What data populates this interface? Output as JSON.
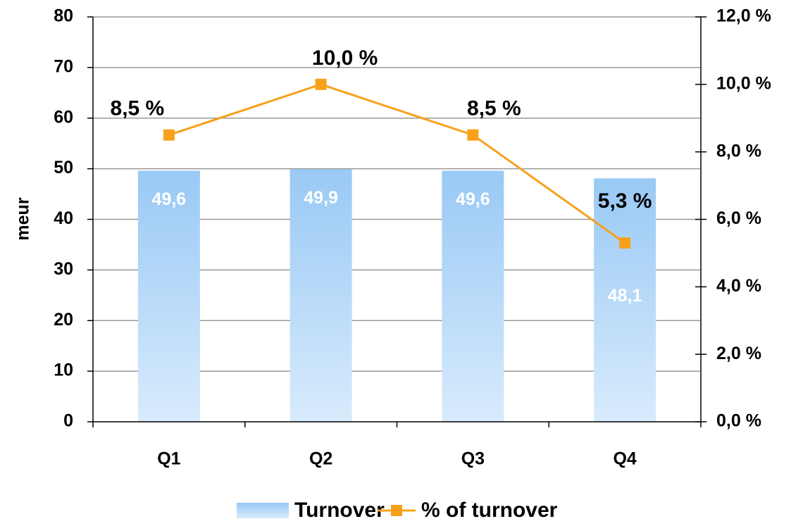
{
  "chart_data": {
    "type": "bar-line",
    "y_label": "meur",
    "categories": [
      "Q1",
      "Q2",
      "Q3",
      "Q4"
    ],
    "series": [
      {
        "name": "Turnover",
        "color": "#99c9f5",
        "type": "bar",
        "values": [
          49.6,
          49.9,
          49.6,
          48.1
        ],
        "value_labels": [
          "49,6",
          "49,9",
          "49,6",
          "48,1"
        ]
      },
      {
        "name": "% of turnover",
        "color": "#f7a11a",
        "type": "line",
        "axis": "y2",
        "values": [
          8.5,
          10.0,
          8.5,
          5.3
        ],
        "value_labels": [
          "8,5 %",
          "10,0 %",
          "8,5 %",
          "5,3 %"
        ]
      }
    ],
    "ylim": [
      0,
      80
    ],
    "yticks": [
      0,
      10,
      20,
      30,
      40,
      50,
      60,
      70,
      80
    ],
    "y2lim": [
      0,
      12
    ],
    "y2ticks": [
      {
        "value": 0,
        "label": "0,0 %"
      },
      {
        "value": 2,
        "label": "2,0 %"
      },
      {
        "value": 4,
        "label": "4,0 %"
      },
      {
        "value": 6,
        "label": "6,0 %"
      },
      {
        "value": 8,
        "label": "8,0 %"
      },
      {
        "value": 10,
        "label": "10,0 %"
      },
      {
        "value": 12,
        "label": "12,0 %"
      }
    ],
    "grid": true
  }
}
